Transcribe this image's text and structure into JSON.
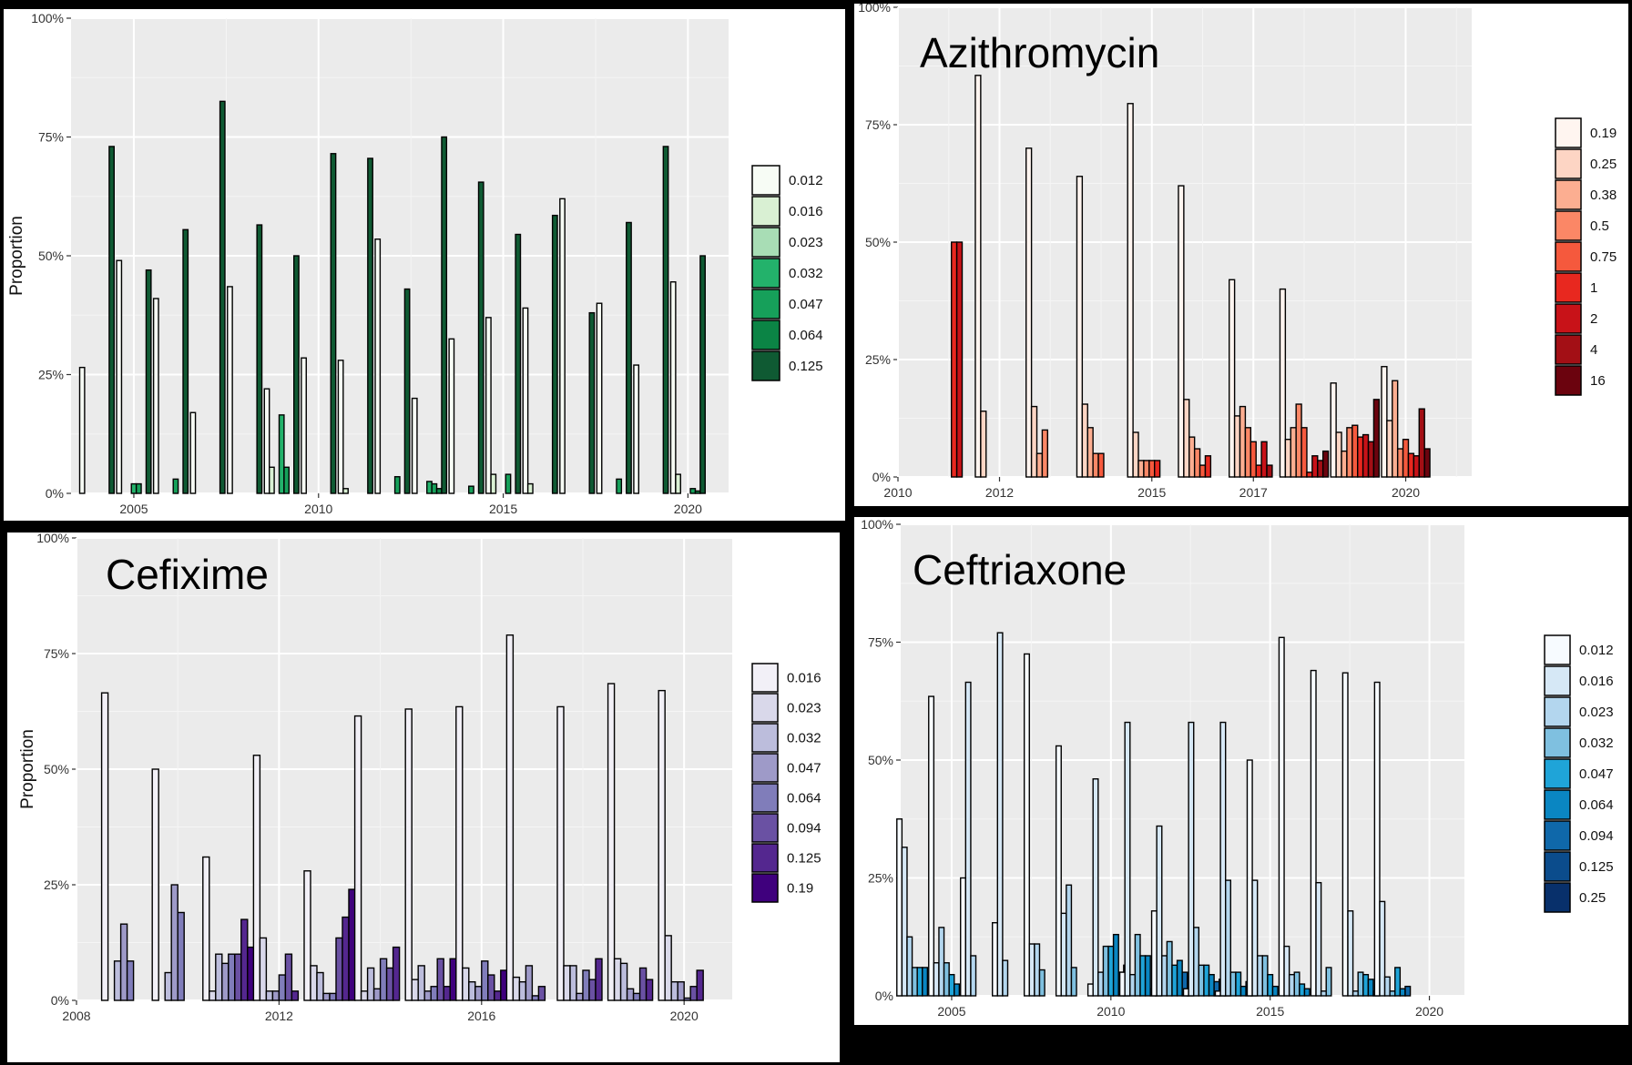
{
  "chart_data": [
    {
      "type": "bar",
      "title": "",
      "ylabel": "Proportion",
      "xticks": [
        "2005",
        "2010",
        "2015",
        "2020"
      ],
      "xtick_values": [
        2005,
        2010,
        2015,
        2020
      ],
      "xlim": [
        2003.3,
        2021.1
      ],
      "yticks": [
        "0%",
        "25%",
        "50%",
        "75%",
        "100%"
      ],
      "ylim": [
        0,
        100
      ],
      "grid": true,
      "legend_position": "right",
      "legend": [
        "0.012",
        "0.016",
        "0.023",
        "0.032",
        "0.047",
        "0.064",
        "0.125"
      ],
      "colors": [
        "#f7fcf5",
        "#d9f0d3",
        "#a8ddb5",
        "#23b26b",
        "#16a05a",
        "#0b8445",
        "#0f5a33"
      ],
      "groups": [
        {
          "year": 2004,
          "values": {
            "0.012": 26.5,
            "0.125": 73
          }
        },
        {
          "year": 2005,
          "values": {
            "0.012": 49,
            "0.032": 2,
            "0.047": 2,
            "0.125": 47
          }
        },
        {
          "year": 2006,
          "values": {
            "0.012": 41,
            "0.047": 3,
            "0.125": 55.5
          }
        },
        {
          "year": 2007,
          "values": {
            "0.012": 17,
            "0.125": 82.5
          }
        },
        {
          "year": 2008,
          "values": {
            "0.012": 43.5,
            "0.125": 56.5
          }
        },
        {
          "year": 2009,
          "values": {
            "0.012": 22,
            "0.016": 5.5,
            "0.032": 16.5,
            "0.047": 5.5,
            "0.125": 50
          }
        },
        {
          "year": 2010,
          "values": {
            "0.012": 28.5,
            "0.125": 71.5
          }
        },
        {
          "year": 2011,
          "values": {
            "0.012": 28,
            "0.016": 1,
            "0.125": 70.5
          }
        },
        {
          "year": 2012,
          "values": {
            "0.012": 53.5,
            "0.047": 3.5,
            "0.125": 43
          }
        },
        {
          "year": 2013,
          "values": {
            "0.012": 20,
            "0.032": 2.5,
            "0.047": 2,
            "0.064": 1,
            "0.125": 75
          }
        },
        {
          "year": 2014,
          "values": {
            "0.012": 32.5,
            "0.047": 1.5,
            "0.125": 65.5
          }
        },
        {
          "year": 2015,
          "values": {
            "0.012": 37,
            "0.016": 4,
            "0.047": 4,
            "0.125": 54.5
          }
        },
        {
          "year": 2016,
          "values": {
            "0.012": 39,
            "0.016": 2,
            "0.125": 58.5
          }
        },
        {
          "year": 2017,
          "values": {
            "0.012": 62,
            "0.125": 38
          }
        },
        {
          "year": 2018,
          "values": {
            "0.012": 40,
            "0.047": 3,
            "0.125": 57
          }
        },
        {
          "year": 2019,
          "values": {
            "0.012": 27,
            "0.125": 73
          }
        },
        {
          "year": 2020,
          "values": {
            "0.012": 44.5,
            "0.016": 4,
            "0.047": 1,
            "0.064": 0.5,
            "0.125": 50
          }
        }
      ]
    },
    {
      "type": "bar",
      "title": "Azithromycin",
      "ylabel": "",
      "xticks": [
        "2010",
        "2012",
        "2015",
        "2017",
        "2020"
      ],
      "xtick_values": [
        2010,
        2012,
        2015,
        2017,
        2020
      ],
      "xlim": [
        2010,
        2021.3
      ],
      "yticks": [
        "0%",
        "25%",
        "50%",
        "75%",
        "100%"
      ],
      "ylim": [
        0,
        100
      ],
      "grid": true,
      "legend_position": "right",
      "legend": [
        "0.19",
        "0.25",
        "0.38",
        "0.5",
        "0.75",
        "1",
        "2",
        "4",
        "16"
      ],
      "colors": [
        "#fff5f0",
        "#fdd5c4",
        "#fcae91",
        "#fb8766",
        "#f5593d",
        "#e8281f",
        "#c81218",
        "#a30f15",
        "#6b030e"
      ],
      "groups": [
        {
          "year": 2011,
          "values": {
            "1": 50,
            "2": 50
          }
        },
        {
          "year": 2012,
          "values": {
            "0.19": 85.5,
            "0.25": 14
          }
        },
        {
          "year": 2013,
          "values": {
            "0.19": 70,
            "0.25": 15,
            "0.38": 5,
            "0.5": 10
          }
        },
        {
          "year": 2014,
          "values": {
            "0.19": 64,
            "0.25": 15.5,
            "0.38": 10.5,
            "0.5": 5,
            "0.75": 5
          }
        },
        {
          "year": 2015,
          "values": {
            "0.19": 79.5,
            "0.25": 9.5,
            "0.38": 3.5,
            "0.5": 3.5,
            "0.75": 3.5,
            "1": 3.5
          }
        },
        {
          "year": 2016,
          "values": {
            "0.19": 62,
            "0.25": 16.5,
            "0.38": 8.5,
            "0.5": 6,
            "0.75": 2.5,
            "1": 4.5
          }
        },
        {
          "year": 2017,
          "values": {
            "0.19": 42,
            "0.25": 13,
            "0.38": 15,
            "0.5": 10.5,
            "0.75": 7.5,
            "1": 2.5,
            "2": 7.5,
            "4": 2.5
          }
        },
        {
          "year": 2018,
          "values": {
            "0.19": 40,
            "0.25": 8,
            "0.38": 10.5,
            "0.5": 15.5,
            "0.75": 10.5,
            "1": 1,
            "2": 4.5,
            "4": 3.5,
            "16": 5.5
          }
        },
        {
          "year": 2019,
          "values": {
            "0.19": 20,
            "0.25": 9.5,
            "0.38": 5.5,
            "0.5": 10.5,
            "0.75": 11,
            "1": 8.5,
            "2": 9,
            "4": 7.5,
            "16": 16.5
          }
        },
        {
          "year": 2020,
          "values": {
            "0.19": 23.5,
            "0.25": 12,
            "0.38": 20.5,
            "0.5": 6,
            "0.75": 8,
            "1": 5,
            "2": 4.5,
            "4": 14.5,
            "16": 6
          }
        }
      ]
    },
    {
      "type": "bar",
      "title": "Cefixime",
      "ylabel": "Proportion",
      "xticks": [
        "2008",
        "2012",
        "2016",
        "2020"
      ],
      "xtick_values": [
        2008,
        2012,
        2016,
        2020
      ],
      "xlim": [
        2008,
        2020.95
      ],
      "yticks": [
        "0%",
        "25%",
        "50%",
        "75%",
        "100%"
      ],
      "ylim": [
        0,
        100
      ],
      "grid": true,
      "legend_position": "right",
      "legend": [
        "0.016",
        "0.023",
        "0.032",
        "0.047",
        "0.064",
        "0.094",
        "0.125",
        "0.19"
      ],
      "colors": [
        "#f2f0f7",
        "#d9d8ea",
        "#bcbddc",
        "#9e9ac8",
        "#807dba",
        "#6a51a3",
        "#54278f",
        "#3f007d"
      ],
      "groups": [
        {
          "year": 2009,
          "values": {
            "0.016": 66.5,
            "0.032": 8.5,
            "0.047": 16.5,
            "0.064": 8.5
          }
        },
        {
          "year": 2010,
          "values": {
            "0.016": 50,
            "0.032": 6,
            "0.047": 25,
            "0.064": 19
          }
        },
        {
          "year": 2011,
          "values": {
            "0.016": 31,
            "0.023": 2,
            "0.032": 10,
            "0.047": 8,
            "0.064": 10,
            "0.094": 10,
            "0.125": 17.5,
            "0.19": 11.5
          }
        },
        {
          "year": 2012,
          "values": {
            "0.016": 53,
            "0.023": 13.5,
            "0.032": 2,
            "0.047": 2,
            "0.064": 5.5,
            "0.094": 10,
            "0.125": 2
          }
        },
        {
          "year": 2013,
          "values": {
            "0.016": 28,
            "0.023": 7.5,
            "0.032": 6,
            "0.047": 1.5,
            "0.064": 1.5,
            "0.094": 13.5,
            "0.125": 18,
            "0.19": 24
          }
        },
        {
          "year": 2014,
          "values": {
            "0.016": 61.5,
            "0.023": 2,
            "0.032": 7,
            "0.047": 2.5,
            "0.064": 9,
            "0.094": 7,
            "0.125": 11.5
          }
        },
        {
          "year": 2015,
          "values": {
            "0.016": 63,
            "0.023": 4.5,
            "0.032": 7.5,
            "0.047": 2,
            "0.064": 3,
            "0.094": 9,
            "0.125": 3,
            "0.19": 9
          }
        },
        {
          "year": 2016,
          "values": {
            "0.016": 63.5,
            "0.023": 7,
            "0.032": 4,
            "0.047": 3,
            "0.064": 8.5,
            "0.094": 5.5,
            "0.125": 2,
            "0.19": 6.5
          }
        },
        {
          "year": 2017,
          "values": {
            "0.016": 79,
            "0.023": 5,
            "0.032": 4,
            "0.047": 7.5,
            "0.064": 1,
            "0.094": 3
          }
        },
        {
          "year": 2018,
          "values": {
            "0.016": 63.5,
            "0.023": 7.5,
            "0.032": 7.5,
            "0.047": 1.5,
            "0.064": 6.5,
            "0.094": 4.5,
            "0.125": 9
          }
        },
        {
          "year": 2019,
          "values": {
            "0.016": 68.5,
            "0.023": 9,
            "0.032": 8,
            "0.047": 2.5,
            "0.064": 1.5,
            "0.094": 7,
            "0.125": 4.5
          }
        },
        {
          "year": 2020,
          "values": {
            "0.016": 67,
            "0.023": 14,
            "0.032": 4,
            "0.047": 4,
            "0.064": 0.5,
            "0.094": 3,
            "0.125": 6.5
          }
        }
      ]
    },
    {
      "type": "bar",
      "title": "Ceftriaxone",
      "ylabel": "",
      "xticks": [
        "2005",
        "2010",
        "2015",
        "2020"
      ],
      "xtick_values": [
        2005,
        2010,
        2015,
        2020
      ],
      "xlim": [
        2003.4,
        2021.1
      ],
      "yticks": [
        "0%",
        "25%",
        "50%",
        "75%",
        "100%"
      ],
      "ylim": [
        0,
        100
      ],
      "grid": true,
      "legend_position": "right",
      "legend": [
        "0.012",
        "0.016",
        "0.023",
        "0.032",
        "0.047",
        "0.064",
        "0.094",
        "0.125",
        "0.25"
      ],
      "colors": [
        "#f7fbff",
        "#d6e8f6",
        "#b3d6ee",
        "#7fc0e0",
        "#1fa4d8",
        "#0a86c2",
        "#0f68aa",
        "#0b4c8c",
        "#08306b"
      ],
      "groups": [
        {
          "year": 2004,
          "values": {
            "0.012": 37.5,
            "0.016": 31.5,
            "0.023": 12.5,
            "0.032": 6,
            "0.047": 6,
            "0.064": 6
          }
        },
        {
          "year": 2005,
          "values": {
            "0.012": 63.5,
            "0.016": 7,
            "0.023": 14.5,
            "0.032": 7,
            "0.047": 4.5,
            "0.064": 2.5
          }
        },
        {
          "year": 2006,
          "values": {
            "0.012": 25,
            "0.016": 66.5,
            "0.023": 8.5
          }
        },
        {
          "year": 2007,
          "values": {
            "0.012": 15.5,
            "0.016": 77,
            "0.023": 7.5
          }
        },
        {
          "year": 2008,
          "values": {
            "0.012": 72.5,
            "0.016": 11,
            "0.023": 11,
            "0.032": 5.5
          }
        },
        {
          "year": 2009,
          "values": {
            "0.012": 53,
            "0.016": 17.5,
            "0.023": 23.5,
            "0.032": 6
          }
        },
        {
          "year": 2010,
          "values": {
            "0.012": 2.5,
            "0.016": 46,
            "0.023": 5,
            "0.032": 10.5,
            "0.047": 10.5,
            "0.064": 13,
            "0.094": 5,
            "0.125": 6.5
          }
        },
        {
          "year": 2011,
          "values": {
            "0.012": 5,
            "0.016": 58,
            "0.023": 4.5,
            "0.032": 13,
            "0.047": 8.5,
            "0.064": 8.5,
            "0.094": 1.5,
            "0.125": 1.5
          }
        },
        {
          "year": 2012,
          "values": {
            "0.012": 18,
            "0.016": 36,
            "0.023": 8.5,
            "0.032": 11.5,
            "0.047": 6.5,
            "0.064": 7.5,
            "0.094": 5,
            "0.125": 4
          }
        },
        {
          "year": 2013,
          "values": {
            "0.012": 1.5,
            "0.016": 58,
            "0.023": 14.5,
            "0.032": 6.5,
            "0.047": 6.5,
            "0.064": 4.5,
            "0.094": 3,
            "0.125": 3.5,
            "0.25": 3.5
          }
        },
        {
          "year": 2014,
          "values": {
            "0.012": 1,
            "0.016": 58,
            "0.023": 24.5,
            "0.032": 5,
            "0.047": 5,
            "0.064": 2,
            "0.094": 3,
            "0.125": 4
          }
        },
        {
          "year": 2015,
          "values": {
            "0.012": 50,
            "0.016": 24.5,
            "0.023": 8.5,
            "0.032": 8.5,
            "0.047": 4.5,
            "0.064": 2
          }
        },
        {
          "year": 2016,
          "values": {
            "0.012": 76,
            "0.016": 10.5,
            "0.023": 4.5,
            "0.032": 5,
            "0.047": 2.5,
            "0.064": 1.5
          }
        },
        {
          "year": 2017,
          "values": {
            "0.012": 69,
            "0.016": 24,
            "0.023": 1,
            "0.032": 6
          }
        },
        {
          "year": 2018,
          "values": {
            "0.012": 68.5,
            "0.016": 18,
            "0.023": 1,
            "0.032": 5,
            "0.047": 4.5,
            "0.064": 3.5,
            "0.094": 1
          }
        },
        {
          "year": 2019,
          "values": {
            "0.012": 66.5,
            "0.016": 20,
            "0.023": 4,
            "0.032": 1,
            "0.047": 6,
            "0.064": 1.5,
            "0.094": 2
          }
        }
      ]
    }
  ]
}
